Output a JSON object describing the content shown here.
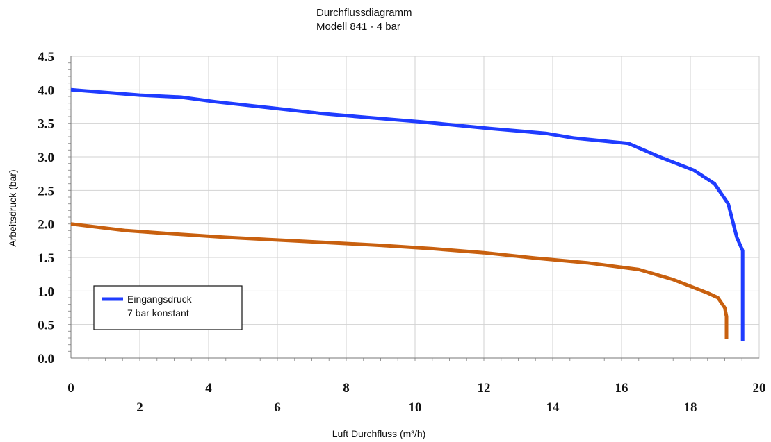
{
  "chart_data": {
    "type": "line",
    "title": "Durchflussdiagramm",
    "subtitle": "Modell 841 - 4 bar",
    "xlabel": "Luft Durchfluss (m³/h)",
    "ylabel": "Arbeitsdruck (bar)",
    "xlim": [
      0,
      20
    ],
    "ylim": [
      0,
      4.5
    ],
    "grid": true,
    "x_ticks_upper": [
      "0",
      "4",
      "8",
      "12",
      "16",
      "20"
    ],
    "x_ticks_lower": [
      "2",
      "6",
      "10",
      "14",
      "18"
    ],
    "y_ticks": [
      "0.0",
      "0.5",
      "1.0",
      "1.5",
      "2.0",
      "2.5",
      "3.0",
      "3.5",
      "4.0",
      "4.5"
    ],
    "legend": {
      "position": "lower-left",
      "line1": "Eingangsdruck",
      "line2": "7 bar konstant"
    },
    "series": [
      {
        "color": "#1f3cff",
        "x": [
          0,
          2,
          3.2,
          4.2,
          5.8,
          7.2,
          8.3,
          10.2,
          12.2,
          13.8,
          14.6,
          16.2,
          17.1,
          18.1,
          18.7,
          19.1,
          19.35,
          19.52,
          19.52,
          19.52
        ],
        "y": [
          4.0,
          3.92,
          3.89,
          3.82,
          3.73,
          3.65,
          3.6,
          3.52,
          3.42,
          3.35,
          3.28,
          3.2,
          3.0,
          2.8,
          2.6,
          2.3,
          1.8,
          1.6,
          0.8,
          0.25
        ]
      },
      {
        "color": "#c8600f",
        "x": [
          0,
          1.6,
          3,
          4.5,
          6,
          7.5,
          9,
          10.5,
          12,
          13.5,
          15,
          16.5,
          17.5,
          18.5,
          18.8,
          19.0,
          19.05,
          19.05
        ],
        "y": [
          2.0,
          1.9,
          1.85,
          1.8,
          1.76,
          1.72,
          1.68,
          1.63,
          1.57,
          1.49,
          1.42,
          1.32,
          1.17,
          0.97,
          0.9,
          0.75,
          0.62,
          0.28
        ]
      }
    ]
  }
}
